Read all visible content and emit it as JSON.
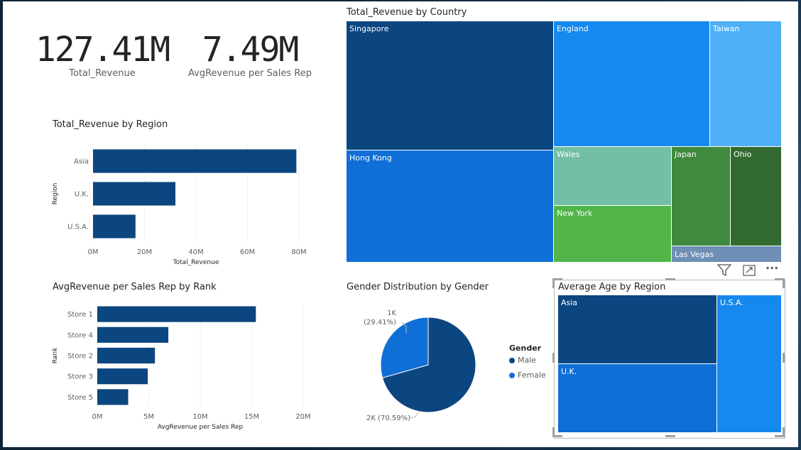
{
  "colors": {
    "navy": "#0c4680",
    "blue": "#0f6fd7",
    "bright_blue": "#1589ee",
    "light_blue": "#4fb0f7",
    "teal": "#72bfa5",
    "green": "#51b54a",
    "dark_green": "#3f8a3e",
    "darker_green": "#336a2f",
    "slate": "#6e8fb6"
  },
  "kpis": [
    {
      "value": "127.41M",
      "label": "Total_Revenue"
    },
    {
      "value": "7.49M",
      "label": "AvgRevenue per Sales Rep"
    }
  ],
  "region_chart": {
    "title": "Total_Revenue by Region",
    "ylabel": "Region",
    "xlabel": "Total_Revenue",
    "ticks": [
      "0M",
      "20M",
      "40M",
      "60M",
      "80M"
    ],
    "chart_data": {
      "type": "bar",
      "categories": [
        "Asia",
        "U.K.",
        "U.S.A."
      ],
      "values": [
        79,
        32,
        16.5
      ],
      "xlim": [
        0,
        80
      ]
    }
  },
  "rank_chart": {
    "title": "AvgRevenue per Sales Rep by Rank",
    "ylabel": "Rank",
    "xlabel": "AvgRevenue per Sales Rep",
    "ticks": [
      "0M",
      "5M",
      "10M",
      "15M",
      "20M"
    ],
    "chart_data": {
      "type": "bar",
      "categories": [
        "Store 1",
        "Store 4",
        "Store 2",
        "Store 3",
        "Store 5"
      ],
      "values": [
        15.4,
        6.9,
        5.6,
        4.9,
        3.0
      ],
      "xlim": [
        0,
        20
      ]
    }
  },
  "country_treemap": {
    "title": "Total_Revenue by Country",
    "cells": [
      "Singapore",
      "England",
      "Taiwan",
      "Hong Kong",
      "Wales",
      "Japan",
      "Ohio",
      "New York",
      "Las Vegas"
    ]
  },
  "gender_pie": {
    "title": "Gender Distribution by Gender",
    "legend_title": "Gender",
    "chart_data": {
      "type": "pie",
      "labels": [
        "Male",
        "Female"
      ],
      "values": [
        70.59,
        29.41
      ]
    },
    "data_labels": [
      {
        "count": "2K",
        "pct": "(70.59%)"
      },
      {
        "count": "1K",
        "pct": "(29.41%)"
      }
    ]
  },
  "age_treemap": {
    "title": "Average Age by Region",
    "cells": [
      "Asia",
      "U.S.A.",
      "U.K."
    ]
  },
  "toolbar": {
    "filter_icon": "filter-icon",
    "focus_icon": "focus-mode-icon",
    "more_label": "···"
  }
}
